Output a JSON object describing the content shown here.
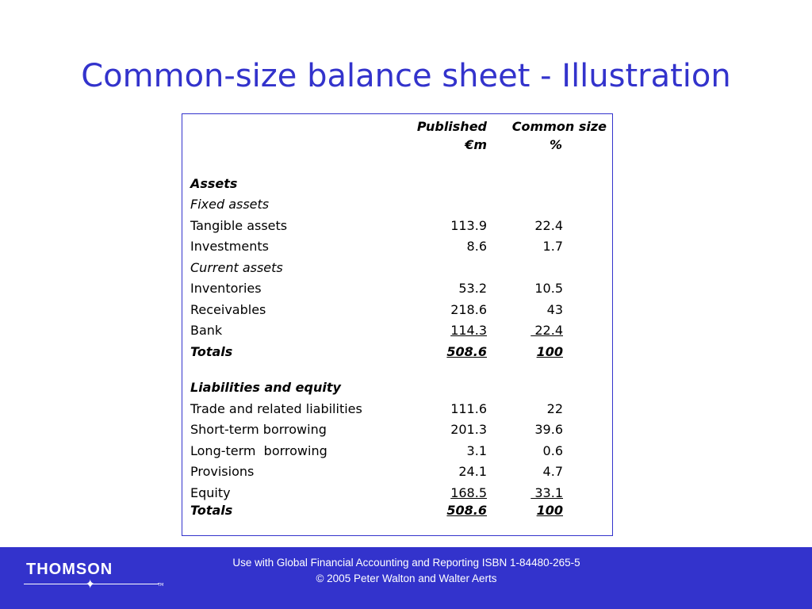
{
  "slide": {
    "title": "Common-size balance sheet - Illustration"
  },
  "table": {
    "headers": {
      "published": [
        "Published",
        "€m"
      ],
      "common_size": [
        "Common size",
        "%"
      ]
    },
    "assets_heading": "Assets",
    "fixed_assets_heading": "Fixed assets",
    "current_assets_heading": "Current assets",
    "liabilities_heading": "Liabilities and equity",
    "rows": [
      {
        "label": "Tangible assets",
        "published": "113.9",
        "common": "22.4"
      },
      {
        "label": "Investments",
        "published": "8.6",
        "common": "1.7"
      },
      {
        "label": "Inventories",
        "published": "53.2",
        "common": "10.5"
      },
      {
        "label": "Receivables",
        "published": "218.6",
        "common": "43"
      },
      {
        "label": "Bank",
        "published": "114.3",
        "common": " 22.4"
      },
      {
        "label": "Totals",
        "published": "508.6",
        "common": "100"
      },
      {
        "label": "Trade and related liabilities",
        "published": "111.6",
        "common": "22"
      },
      {
        "label": "Short-term borrowing",
        "published": "201.3",
        "common": "39.6"
      },
      {
        "label": "Long-term  borrowing",
        "published": "3.1",
        "common": "0.6"
      },
      {
        "label": "Provisions",
        "published": "24.1",
        "common": "4.7"
      },
      {
        "label": "Equity",
        "published": "168.5",
        "common": " 33.1"
      },
      {
        "label": "Totals",
        "published": "508.6",
        "common": "100"
      }
    ]
  },
  "footer": {
    "line1": "Use with Global Financial Accounting and Reporting ISBN 1-84480-265-5",
    "line2": "© 2005 Peter Walton and Walter Aerts",
    "logo": "THOMSON",
    "logo_tm": "TM"
  }
}
